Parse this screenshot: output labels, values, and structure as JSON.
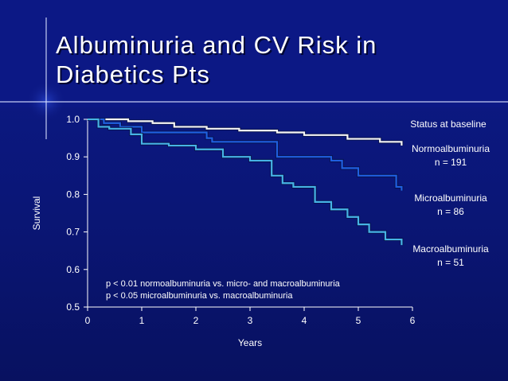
{
  "slide": {
    "title_line1": "Albuminuria and CV Risk in",
    "title_line2": "Diabetics Pts"
  },
  "colors": {
    "background": "#0b167a",
    "normoalbuminuria": "#f5f5f5",
    "microalbuminuria": "#1f5fe0",
    "macroalbuminuria": "#46b3e6",
    "text": "#ffffff"
  },
  "chart_data": {
    "type": "line",
    "step": true,
    "title": "",
    "xlabel": "Years",
    "ylabel": "Survival",
    "xlim": [
      0,
      6
    ],
    "ylim": [
      0.5,
      1.0
    ],
    "xticks": [
      "0",
      "1",
      "2",
      "3",
      "4",
      "5",
      "6"
    ],
    "yticks": [
      "0.5",
      "0.6",
      "0.7",
      "0.8",
      "0.9",
      "1.0"
    ],
    "legend_title": "Status at baseline",
    "legend_placement": "right",
    "series": [
      {
        "name": "Normoalbuminuria",
        "n_label": "n = 191",
        "x": [
          0,
          0.75,
          1.2,
          1.6,
          2.2,
          2.8,
          3.5,
          4.0,
          4.8,
          5.4,
          5.8
        ],
        "y": [
          1.0,
          0.995,
          0.99,
          0.98,
          0.975,
          0.97,
          0.965,
          0.958,
          0.948,
          0.94,
          0.93
        ]
      },
      {
        "name": "Microalbuminuria",
        "n_label": "n = 86",
        "x": [
          0,
          0.3,
          0.6,
          1.0,
          2.2,
          2.3,
          3.5,
          4.5,
          4.7,
          5.0,
          5.7,
          5.8
        ],
        "y": [
          1.0,
          0.99,
          0.98,
          0.965,
          0.95,
          0.94,
          0.9,
          0.89,
          0.87,
          0.85,
          0.82,
          0.81
        ]
      },
      {
        "name": "Macroalbuminuria",
        "n_label": "n = 51",
        "x": [
          0,
          0.2,
          0.4,
          0.8,
          1.0,
          1.5,
          2.0,
          2.5,
          3.0,
          3.4,
          3.6,
          3.8,
          4.2,
          4.5,
          4.8,
          5.0,
          5.2,
          5.5,
          5.8
        ],
        "y": [
          1.0,
          0.98,
          0.975,
          0.96,
          0.935,
          0.93,
          0.92,
          0.9,
          0.89,
          0.85,
          0.83,
          0.82,
          0.78,
          0.76,
          0.74,
          0.72,
          0.7,
          0.68,
          0.665
        ]
      }
    ],
    "annotations": [
      "p < 0.01 normoalbuminuria vs. micro- and macroalbuminuria",
      "p < 0.05 microalbuminuria vs. macroalbuminuria"
    ]
  }
}
